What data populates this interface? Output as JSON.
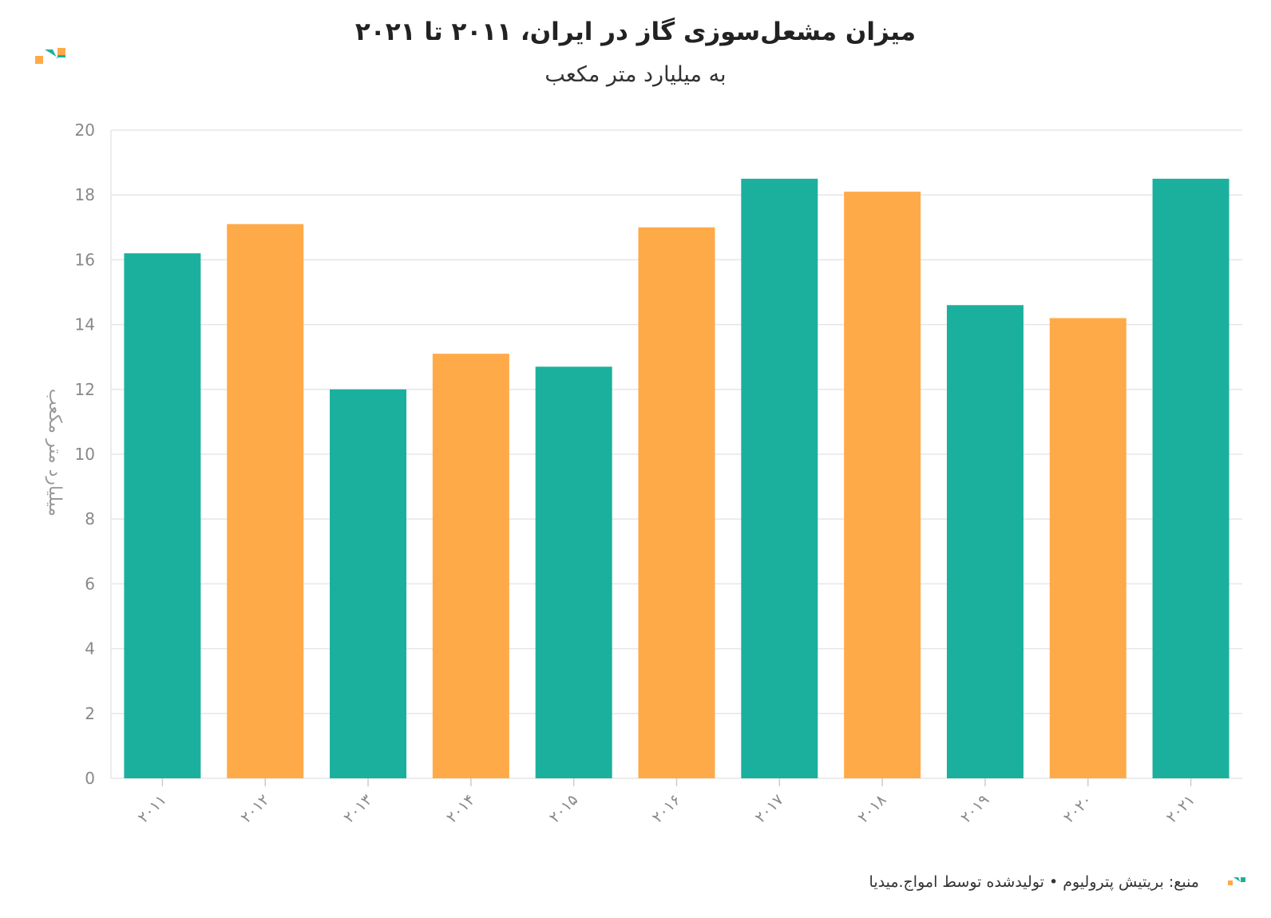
{
  "header": {
    "title": "میزان مشعل‌سوزی گاز در ایران، ۲۰۱۱ تا ۲۰۲۱",
    "subtitle": "به میلیارد متر مکعب"
  },
  "footer": {
    "source_text": "منبع: بریتیش پترولیوم • تولیدشده توسط امواج.میدیا"
  },
  "colors": {
    "teal": "#1bb09e",
    "orange": "#ffaa48",
    "grid": "#e6e6e6",
    "tick_text": "#888888"
  },
  "chart_data": {
    "type": "bar",
    "categories": [
      "۲۰۱۱",
      "۲۰۱۲",
      "۲۰۱۳",
      "۲۰۱۴",
      "۲۰۱۵",
      "۲۰۱۶",
      "۲۰۱۷",
      "۲۰۱۸",
      "۲۰۱۹",
      "۲۰۲۰",
      "۲۰۲۱"
    ],
    "values": [
      16.2,
      17.1,
      12.0,
      13.1,
      12.7,
      17.0,
      18.5,
      18.1,
      14.6,
      14.2,
      18.5
    ],
    "bar_colors": [
      "#1bb09e",
      "#ffaa48",
      "#1bb09e",
      "#ffaa48",
      "#1bb09e",
      "#ffaa48",
      "#1bb09e",
      "#ffaa48",
      "#1bb09e",
      "#ffaa48",
      "#1bb09e"
    ],
    "title": "میزان مشعل‌سوزی گاز در ایران، ۲۰۱۱ تا ۲۰۲۱",
    "subtitle": "به میلیارد متر مکعب",
    "xlabel": "",
    "ylabel": "میلیارد متر مکعب",
    "ylim": [
      0,
      20
    ],
    "yticks": [
      0,
      2,
      4,
      6,
      8,
      10,
      12,
      14,
      16,
      18,
      20
    ],
    "grid": true
  }
}
